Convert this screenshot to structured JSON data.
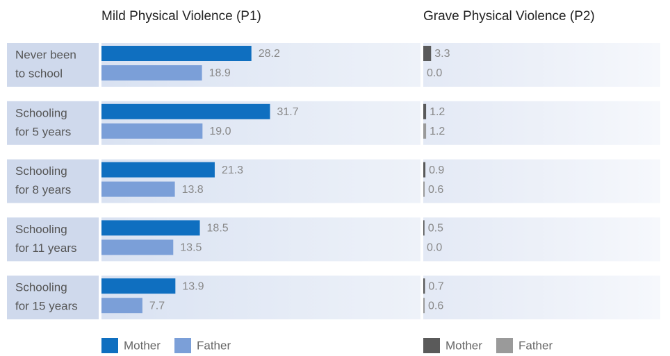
{
  "chart_data": [
    {
      "type": "bar",
      "title": "Mild Physical Violence (P1)",
      "categories": [
        [
          "Never been",
          "to school"
        ],
        [
          "Schooling",
          "for 5 years"
        ],
        [
          "Schooling",
          "for 8 years"
        ],
        [
          "Schooling",
          "for 11 years"
        ],
        [
          "Schooling",
          "for 15 years"
        ]
      ],
      "series": [
        {
          "name": "Mother",
          "color": "#0f6fc0",
          "values": [
            28.2,
            31.7,
            21.3,
            18.5,
            13.9
          ],
          "value_labels": [
            "28.2",
            "31.7",
            "21.3",
            "18.5",
            "13.9"
          ]
        },
        {
          "name": "Father",
          "color": "#7b9fd8",
          "values": [
            18.9,
            19.0,
            13.8,
            13.5,
            7.7
          ],
          "value_labels": [
            "18.9",
            "19.0",
            "13.8",
            "13.5",
            "7.7"
          ]
        }
      ],
      "xlim": [
        0,
        60
      ]
    },
    {
      "type": "bar",
      "title": "Grave Physical Violence (P2)",
      "series": [
        {
          "name": "Mother",
          "color": "#5a5a5a",
          "values": [
            3.3,
            1.2,
            0.9,
            0.5,
            0.7
          ],
          "value_labels": [
            "3.3",
            "1.2",
            "0.9",
            "0.5",
            "0.7"
          ]
        },
        {
          "name": "Father",
          "color": "#9a9a9a",
          "values": [
            0.0,
            1.2,
            0.6,
            0.0,
            0.6
          ],
          "value_labels": [
            "0.0",
            "1.2",
            "0.6",
            "0.0",
            "0.6"
          ]
        }
      ],
      "xlim": [
        0,
        100
      ]
    }
  ]
}
